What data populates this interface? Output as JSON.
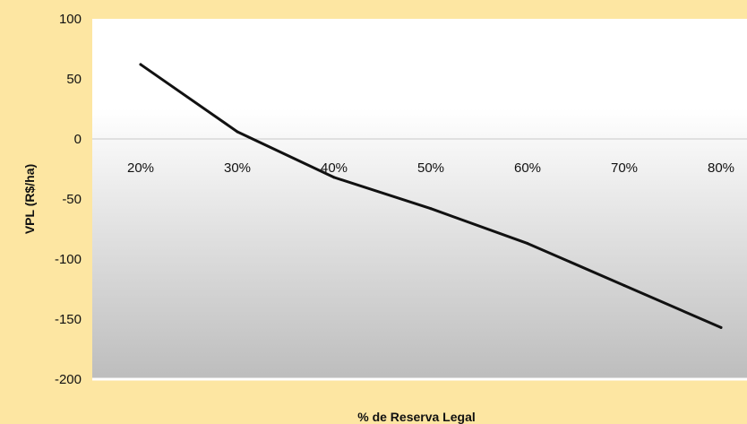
{
  "chart_data": {
    "type": "line",
    "title": "",
    "xlabel": "% de Reserva Legal",
    "ylabel": "VPL (R$/ha)",
    "categories": [
      "20%",
      "30%",
      "40%",
      "50%",
      "60%",
      "70%",
      "80%"
    ],
    "series": [
      {
        "values": [
          62,
          6,
          -32,
          -58,
          -87,
          -122,
          -157
        ]
      }
    ],
    "ylim": [
      -200,
      100
    ],
    "yticks": [
      "100",
      "50",
      "0",
      "-50",
      "-100",
      "-150",
      "-200"
    ],
    "ytick_values": [
      100,
      50,
      0,
      -50,
      -100,
      -150,
      -200
    ],
    "grid": false,
    "legend": "none",
    "colors": {
      "outer_background": "#fde6a2",
      "plot_top": "#ffffff",
      "plot_bottom": "#bdbdbd",
      "line": "#111111",
      "zero_axis": "#c8c8c8"
    }
  }
}
